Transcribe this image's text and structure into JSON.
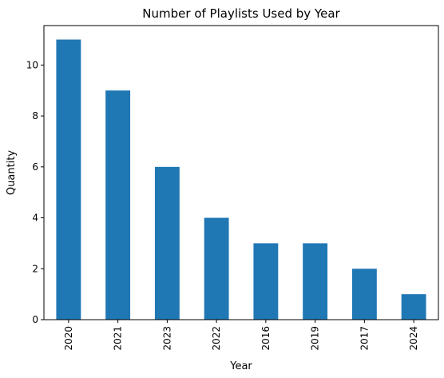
{
  "chart_data": {
    "type": "bar",
    "title": "Number of Playlists Used by Year",
    "xlabel": "Year",
    "ylabel": "Quantity",
    "categories": [
      "2020",
      "2021",
      "2023",
      "2022",
      "2016",
      "2019",
      "2017",
      "2024"
    ],
    "values": [
      11,
      9,
      6,
      4,
      3,
      3,
      2,
      1
    ],
    "ylim": [
      0,
      11.55
    ],
    "yticks": [
      0,
      2,
      4,
      6,
      8,
      10
    ],
    "grid": false,
    "bar_color": "#1f77b4"
  }
}
